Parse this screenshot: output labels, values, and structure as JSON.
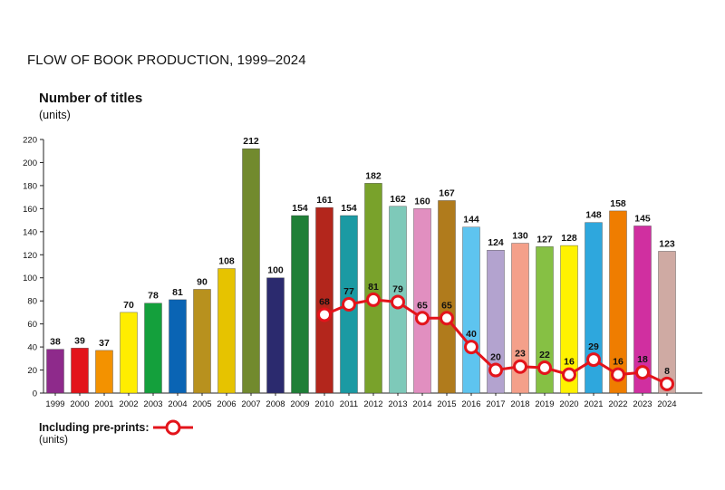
{
  "title": "FLOW OF BOOK PRODUCTION, 1999–2024",
  "y_axis": {
    "label": "Number of titles",
    "units": "(units)"
  },
  "legend": {
    "label": "Including pre-prints:",
    "units": "(units)"
  },
  "colors": {
    "line": "#e3141b",
    "axis": "#222222"
  },
  "chart_data": {
    "type": "bar",
    "categories": [
      "1999",
      "2000",
      "2001",
      "2002",
      "2003",
      "2004",
      "2005",
      "2006",
      "2007",
      "2008",
      "2009",
      "2010",
      "2011",
      "2012",
      "2013",
      "2014",
      "2015",
      "2016",
      "2017",
      "2018",
      "2019",
      "2020",
      "2021",
      "2022",
      "2023",
      "2024"
    ],
    "values": [
      38,
      39,
      37,
      70,
      78,
      81,
      90,
      108,
      212,
      100,
      154,
      161,
      154,
      182,
      162,
      160,
      167,
      144,
      124,
      130,
      127,
      128,
      148,
      158,
      145,
      123
    ],
    "bar_colors": [
      "#8e2a8b",
      "#e3141b",
      "#f39200",
      "#ffed00",
      "#14a03c",
      "#0a64b4",
      "#b8911e",
      "#e6c300",
      "#728a2e",
      "#2b2a6e",
      "#1f7f37",
      "#b3261c",
      "#1b9aa3",
      "#79a22b",
      "#7ec9b9",
      "#e18fc0",
      "#b07b1c",
      "#5ec4ef",
      "#b3a3cf",
      "#f4a08a",
      "#86c044",
      "#fff200",
      "#2ea7dd",
      "#ef7d00",
      "#d02fa0",
      "#cfaaa3"
    ],
    "line_series": {
      "name": "Including pre-prints:",
      "x": [
        "2010",
        "2011",
        "2012",
        "2013",
        "2014",
        "2015",
        "2016",
        "2017",
        "2018",
        "2019",
        "2020",
        "2021",
        "2022",
        "2023",
        "2024"
      ],
      "values": [
        68,
        77,
        81,
        79,
        65,
        65,
        40,
        20,
        23,
        22,
        16,
        29,
        16,
        18,
        8
      ]
    },
    "ylim": [
      0,
      220
    ],
    "yticks": [
      0,
      20,
      40,
      60,
      80,
      100,
      120,
      140,
      160,
      180,
      200,
      220
    ],
    "grid": false
  }
}
